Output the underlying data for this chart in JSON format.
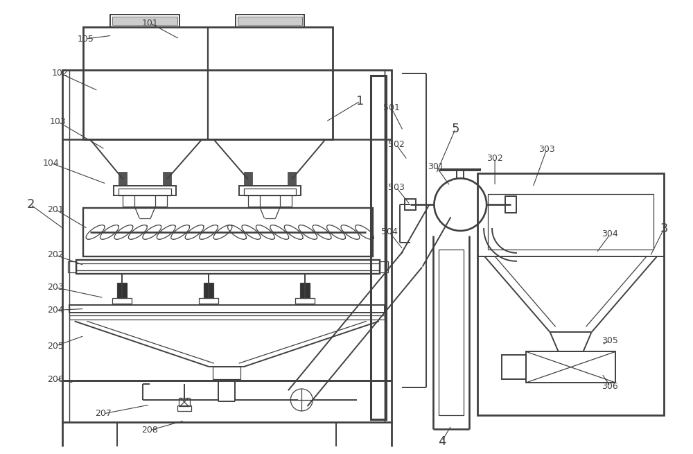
{
  "bg_color": "#ffffff",
  "lc": "#404040",
  "lw": 1.4,
  "tlw": 0.9
}
